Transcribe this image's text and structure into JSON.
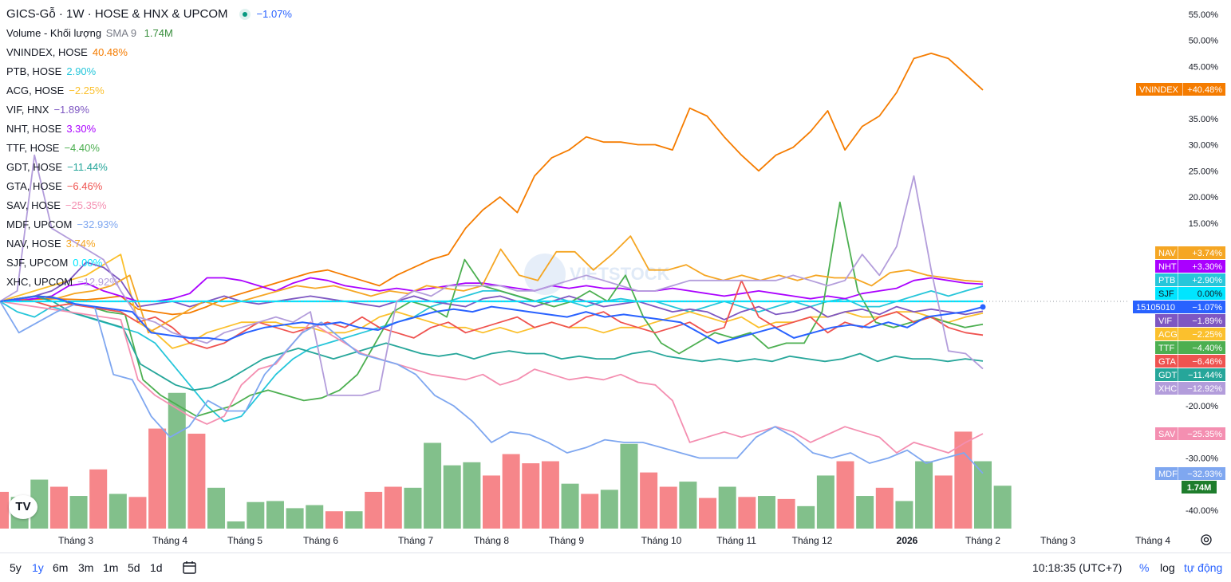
{
  "legend": {
    "title": "GICS-Gỗ · 1W · HOSE & HNX & UPCOM",
    "title_change": "−1.07%",
    "title_color": "#2962ff",
    "volume_label": "Volume - Khối lượng",
    "volume_sma": "SMA 9",
    "volume_value": "1.74M",
    "volume_color": "#388e3c"
  },
  "time_axis": [
    "Tháng 3",
    "Tháng 4",
    "Tháng 5",
    "Tháng 6",
    "Tháng 7",
    "Tháng 8",
    "Tháng 9",
    "Tháng 10",
    "Tháng 11",
    "Tháng 12",
    "2026",
    "Tháng 2",
    "Tháng 3",
    "Tháng 4"
  ],
  "bottom_bar": {
    "ranges": [
      "5y",
      "1y",
      "6m",
      "3m",
      "1m",
      "5d",
      "1d"
    ],
    "active_range": "1y",
    "calendar_icon": "calendar-range-icon",
    "time": "10:18:35 (UTC+7)",
    "pct": "%",
    "log": "log",
    "auto": "tự động"
  },
  "watermark": "VIETSTOCK",
  "tv_logo": "TV",
  "chart_data": {
    "type": "line",
    "title": "GICS-Gỗ · 1W · HOSE & HNX & UPCOM",
    "y_axis": {
      "unit": "%",
      "range": [
        -43,
        56
      ],
      "ticks": [
        55,
        50,
        45,
        40,
        35,
        30,
        25,
        20,
        15,
        10,
        -20,
        -30,
        -40
      ],
      "tick_labels": [
        "55.00%",
        "50.00%",
        "45.00%",
        "40.00%",
        "35.00%",
        "30.00%",
        "25.00%",
        "20.00%",
        "15.00%",
        "10.00%",
        "-20.00%",
        "-30.00%",
        "-40.00%"
      ]
    },
    "x_axis": {
      "type": "time",
      "weeks": 53
    },
    "main_series": {
      "label": "15105010",
      "value": "−1.07%",
      "color": "#2962ff"
    },
    "series": [
      {
        "symbol": "VNINDEX",
        "exchange": "HOSE",
        "value": "40.48%",
        "tag": "+40.48%",
        "color": "#f57c00",
        "values": [
          0,
          0.3,
          0.4,
          0.5,
          0.4,
          0.3,
          0.6,
          1.0,
          -1.5,
          -2.0,
          -2.5,
          -2.2,
          -1.0,
          0.5,
          1.5,
          2.5,
          3.5,
          4.5,
          5.5,
          6.0,
          5.0,
          4.0,
          3.0,
          5.0,
          6.5,
          8.0,
          9.0,
          14.0,
          17.5,
          20.0,
          17.0,
          24.0,
          27.5,
          29.0,
          31.5,
          30.5,
          30.5,
          30.0,
          30.0,
          29.0,
          37.0,
          35.5,
          31.5,
          28.0,
          25.0,
          28.0,
          29.5,
          32.5,
          36.5,
          29.0,
          33.5,
          35.5,
          40.0,
          46.5,
          47.5,
          46.5,
          43.5,
          40.48
        ]
      },
      {
        "symbol": "PTB",
        "exchange": "HOSE",
        "value": "2.90%",
        "tag": "+2.90%",
        "color": "#26c6da",
        "values": [
          0,
          -2,
          -3,
          -1,
          -2,
          -3,
          -4,
          -5,
          -6,
          -8,
          -12,
          -16,
          -20,
          -23,
          -22,
          -18,
          -14,
          -11,
          -9,
          -8,
          -7,
          -6,
          -5,
          -4,
          -3,
          -1,
          0,
          1,
          2,
          2,
          1,
          0,
          1,
          0,
          -1,
          0,
          0.5,
          0,
          0,
          -1,
          -2,
          -1,
          0,
          -1,
          -2,
          -1,
          0,
          -1,
          0,
          0.5,
          -1,
          -1,
          0,
          1,
          2,
          1,
          2,
          2.9
        ]
      },
      {
        "symbol": "ACG",
        "exchange": "HOSE",
        "value": "−2.25%",
        "tag": "−2.25%",
        "color": "#fbc02d",
        "values": [
          0,
          1,
          2,
          3,
          4,
          5,
          7,
          9,
          -4,
          -6,
          -9,
          -8,
          -6,
          -5,
          -4,
          -4,
          -4,
          -5,
          -5,
          -6,
          -6,
          -5,
          -3,
          -2,
          -3,
          -4,
          -5,
          -5,
          -6,
          -5,
          -6,
          -5,
          -4,
          -5,
          -5,
          -6,
          -5,
          -5,
          -4,
          -3,
          -2,
          -3,
          -4,
          -3,
          -5,
          -4,
          -4,
          -3,
          -3,
          -2,
          -3,
          -3,
          -2,
          -2,
          -3,
          -4,
          -3,
          -2.25
        ]
      },
      {
        "symbol": "VIF",
        "exchange": "HNX",
        "value": "−1.89%",
        "tag": "−1.89%",
        "color": "#7e57c2",
        "values": [
          0,
          0.5,
          1.0,
          2.0,
          4.0,
          7.5,
          6.5,
          4.0,
          -1.0,
          -0.5,
          0,
          -1.0,
          0,
          1.0,
          0,
          -0.5,
          0,
          0.5,
          1.0,
          0.5,
          0,
          -0.5,
          -1.0,
          0,
          1.0,
          0,
          -0.5,
          -1.0,
          0.5,
          1.0,
          0,
          -1.0,
          0,
          1.0,
          0,
          -1.0,
          -0.5,
          0,
          -1.0,
          -2.0,
          -1.5,
          -2.0,
          -3.5,
          -2.0,
          -1.0,
          -2.5,
          -2.0,
          -1.0,
          -3.0,
          -2.0,
          -1.5,
          -2.5,
          -1.0,
          -2.0,
          -1.5,
          -2.0,
          -2.5,
          -1.89
        ]
      },
      {
        "symbol": "NHT",
        "exchange": "HOSE",
        "value": "3.30%",
        "tag": "+3.30%",
        "color": "#aa00ff",
        "values": [
          0,
          0.2,
          0.5,
          1.0,
          3.0,
          3.5,
          2.0,
          1.0,
          0,
          0,
          0.5,
          1.5,
          4.5,
          4.5,
          4.0,
          3.0,
          2.0,
          3.5,
          4.5,
          4.0,
          3.0,
          2.5,
          2.0,
          2.5,
          2.0,
          2.5,
          3.0,
          3.5,
          3.5,
          3.0,
          2.5,
          2.0,
          3.0,
          2.5,
          3.0,
          2.5,
          2.5,
          2.0,
          2.0,
          2.5,
          2.0,
          1.5,
          1.0,
          1.5,
          2.0,
          1.5,
          1.0,
          0.5,
          1.0,
          0.5,
          1.5,
          2.0,
          2.5,
          4.0,
          4.5,
          4.0,
          3.5,
          3.3
        ]
      },
      {
        "symbol": "TTF",
        "exchange": "HOSE",
        "value": "−4.40%",
        "tag": "−4.40%",
        "color": "#4caf50",
        "values": [
          0,
          0.5,
          1.0,
          0.8,
          -0.5,
          -1.0,
          -2.0,
          -2.5,
          -15.0,
          -18.0,
          -20.0,
          -22.0,
          -21.0,
          -20.0,
          -18.0,
          -17.0,
          -18.0,
          -19.0,
          -18.5,
          -17.0,
          -14.0,
          -8.0,
          -2.0,
          0,
          -1.0,
          -3.0,
          8.0,
          3.0,
          2.0,
          1.0,
          0,
          -1.0,
          0,
          2.0,
          0,
          5.0,
          -3.0,
          -8.0,
          -10.0,
          -8.0,
          -6.0,
          -7.0,
          -6.0,
          -9.0,
          -8.0,
          -8.0,
          -2.0,
          19.0,
          2.0,
          -4.0,
          -5.0,
          -4.0,
          -3.0,
          -4.0,
          -5.0,
          -4.4
        ]
      },
      {
        "symbol": "GDT",
        "exchange": "HOSE",
        "value": "−11.44%",
        "tag": "−11.44%",
        "color": "#26a69a",
        "values": [
          0,
          0.5,
          1.0,
          0,
          -2.0,
          -3.0,
          -4.0,
          -5.0,
          -12.0,
          -14.0,
          -16.0,
          -17.0,
          -16.5,
          -15.0,
          -13.0,
          -11.0,
          -10.0,
          -9.0,
          -10.0,
          -11.0,
          -10.0,
          -9.0,
          -8.0,
          -9.0,
          -10.0,
          -10.5,
          -10.0,
          -11.0,
          -10.0,
          -9.5,
          -10.0,
          -10.0,
          -11.0,
          -10.5,
          -11.0,
          -11.0,
          -10.0,
          -9.5,
          -10.5,
          -11.0,
          -11.5,
          -11.0,
          -11.5,
          -11.0,
          -11.5,
          -10.5,
          -11.0,
          -11.5,
          -11.0,
          -10.0,
          -11.5,
          -10.5,
          -11.0,
          -11.0,
          -11.5,
          -11.0,
          -11.44
        ]
      },
      {
        "symbol": "GTA",
        "exchange": "HOSE",
        "value": "−6.46%",
        "tag": "−6.46%",
        "color": "#ef5350",
        "values": [
          0,
          0.5,
          0,
          -1.0,
          -0.5,
          -1.0,
          -1.5,
          -2.0,
          -4.0,
          -3.0,
          -5.0,
          -8.0,
          -9.0,
          -8.0,
          -6.0,
          -4.0,
          -5.0,
          -6.0,
          -5.0,
          -4.0,
          -5.0,
          -3.0,
          -5.0,
          -6.0,
          -7.0,
          -5.0,
          -4.0,
          -6.0,
          -5.0,
          -4.0,
          -3.0,
          -5.0,
          -4.0,
          -5.0,
          -3.0,
          -2.0,
          -4.0,
          -5.0,
          -6.0,
          -5.0,
          -4.0,
          -6.0,
          -5.0,
          4.0,
          -3.0,
          -5.0,
          -4.0,
          -3.0,
          -6.0,
          -4.0,
          -5.0,
          -3.0,
          -2.0,
          -4.0,
          -3.0,
          -5.0,
          -6.0,
          -6.46
        ]
      },
      {
        "symbol": "SAV",
        "exchange": "HOSE",
        "value": "−25.35%",
        "tag": "−25.35%",
        "color": "#f48fb1",
        "values": [
          0,
          -0.5,
          -1.0,
          -1.5,
          -2.0,
          -2.5,
          -3.0,
          -3.5,
          -15.0,
          -18.0,
          -20.0,
          -22.0,
          -23.5,
          -22.0,
          -16.0,
          -13.0,
          -12.0,
          -8.0,
          -4.0,
          -6.0,
          -8.0,
          -10.0,
          -11.0,
          -12.0,
          -13.0,
          -14.0,
          -14.5,
          -15.0,
          -14.0,
          -16.0,
          -15.0,
          -13.0,
          -14.0,
          -15.0,
          -14.5,
          -15.0,
          -14.0,
          -15.5,
          -16.0,
          -19.0,
          -27.0,
          -26.0,
          -25.0,
          -26.0,
          -25.0,
          -24.0,
          -25.0,
          -27.0,
          -25.5,
          -24.0,
          -25.0,
          -26.0,
          -29.0,
          -27.0,
          -28.0,
          -29.0,
          -27.0,
          -25.35
        ]
      },
      {
        "symbol": "MDF",
        "exchange": "UPCOM",
        "value": "−32.93%",
        "tag": "−32.93%",
        "color": "#7fa7f0",
        "values": [
          0,
          -6.0,
          -4.0,
          -2.0,
          -0.5,
          -1.0,
          -14.0,
          -15.0,
          -22.0,
          -26.0,
          -24.0,
          -19.0,
          -21.0,
          -21.0,
          -14.0,
          -10.0,
          -6.0,
          -4.0,
          -7.0,
          -10.0,
          -11.0,
          -12.0,
          -14.0,
          -18.0,
          -20.0,
          -23.0,
          -27.0,
          -25.0,
          -25.5,
          -27.0,
          -29.0,
          -28.0,
          -26.5,
          -27.0,
          -27.0,
          -28.0,
          -29.0,
          -30.0,
          -30.0,
          -30.0,
          -26.0,
          -24.0,
          -26.0,
          -29.0,
          -30.0,
          -29.0,
          -31.0,
          -30.0,
          -28.5,
          -31.0,
          -30.0,
          -29.0,
          -32.93
        ]
      },
      {
        "symbol": "NAV",
        "exchange": "HOSE",
        "value": "3.74%",
        "tag": "+3.74%",
        "color": "#f5a623",
        "values": [
          0,
          0.5,
          1.0,
          0.5,
          1.5,
          2.0,
          3.0,
          5.0,
          -6.0,
          -4.0,
          -2.0,
          0,
          -1.0,
          0,
          1.0,
          2.0,
          3.0,
          2.5,
          3.0,
          2.0,
          1.0,
          2.0,
          1.5,
          3.0,
          2.5,
          2.0,
          3.0,
          10.0,
          5.0,
          4.0,
          9.5,
          9.5,
          6.0,
          9.0,
          12.5,
          6.0,
          6.0,
          7.0,
          5.0,
          4.0,
          5.0,
          4.0,
          5.0,
          4.0,
          5.0,
          4.5,
          4.5,
          3.0,
          5.5,
          6.0,
          5.0,
          4.5,
          4.0,
          3.74
        ]
      },
      {
        "symbol": "SJF",
        "exchange": "UPCOM",
        "value": "0.00%",
        "tag": "0.00%",
        "color": "#00e5ff",
        "values": [
          0,
          0,
          0,
          0,
          0,
          0,
          0,
          0,
          0,
          0,
          0,
          0,
          0,
          0,
          0,
          0,
          0,
          0,
          0,
          0,
          0,
          0,
          0,
          0,
          0,
          0,
          0,
          0,
          0,
          0,
          0,
          0,
          0,
          0,
          0,
          0,
          0,
          0,
          0,
          0,
          0,
          0,
          0,
          0,
          0,
          0,
          0,
          0,
          0,
          0,
          0,
          0,
          0,
          0,
          0,
          0,
          0,
          0
        ]
      },
      {
        "symbol": "XHC",
        "exchange": "UPCOM",
        "value": "−12.92%",
        "tag": "−12.92%",
        "color": "#b39ddb",
        "values": [
          0,
          2.0,
          28.0,
          14.0,
          12.0,
          10.0,
          8.0,
          2.0,
          -3.0,
          -4.0,
          -6.0,
          -7.0,
          -8.0,
          -6.0,
          -5.0,
          -4.0,
          -3.0,
          -4.0,
          -2.0,
          -18.0,
          -18.0,
          -18.0,
          -17.0,
          0,
          2.0,
          1.0,
          3.0,
          3.0,
          3.0,
          3.0,
          2.0,
          2.0,
          3.0,
          4.0,
          5.0,
          4.0,
          3.0,
          2.0,
          2.0,
          3.0,
          4.0,
          4.0,
          4.0,
          4.0,
          4.0,
          4.0,
          5.0,
          4.0,
          3.0,
          4.0,
          9.0,
          5.0,
          10.5,
          24.0,
          6.0,
          -9.5,
          -10.0,
          -12.92
        ]
      }
    ],
    "volume": {
      "label": "1.74M",
      "last_color": "#1e7d2c",
      "bars": [
        {
          "v": 0.36,
          "up": false
        },
        {
          "v": 0.31,
          "up": true
        },
        {
          "v": 0.48,
          "up": true
        },
        {
          "v": 0.41,
          "up": false
        },
        {
          "v": 0.32,
          "up": true
        },
        {
          "v": 0.58,
          "up": false
        },
        {
          "v": 0.34,
          "up": true
        },
        {
          "v": 0.31,
          "up": false
        },
        {
          "v": 0.98,
          "up": false
        },
        {
          "v": 1.33,
          "up": true
        },
        {
          "v": 0.93,
          "up": false
        },
        {
          "v": 0.4,
          "up": true
        },
        {
          "v": 0.07,
          "up": true
        },
        {
          "v": 0.26,
          "up": true
        },
        {
          "v": 0.27,
          "up": true
        },
        {
          "v": 0.2,
          "up": true
        },
        {
          "v": 0.23,
          "up": true
        },
        {
          "v": 0.17,
          "up": false
        },
        {
          "v": 0.17,
          "up": true
        },
        {
          "v": 0.36,
          "up": false
        },
        {
          "v": 0.41,
          "up": false
        },
        {
          "v": 0.4,
          "up": true
        },
        {
          "v": 0.84,
          "up": true
        },
        {
          "v": 0.62,
          "up": true
        },
        {
          "v": 0.65,
          "up": true
        },
        {
          "v": 0.52,
          "up": false
        },
        {
          "v": 0.73,
          "up": false
        },
        {
          "v": 0.64,
          "up": false
        },
        {
          "v": 0.66,
          "up": false
        },
        {
          "v": 0.44,
          "up": true
        },
        {
          "v": 0.34,
          "up": false
        },
        {
          "v": 0.38,
          "up": true
        },
        {
          "v": 0.83,
          "up": true
        },
        {
          "v": 0.55,
          "up": false
        },
        {
          "v": 0.41,
          "up": false
        },
        {
          "v": 0.46,
          "up": true
        },
        {
          "v": 0.3,
          "up": false
        },
        {
          "v": 0.41,
          "up": true
        },
        {
          "v": 0.31,
          "up": false
        },
        {
          "v": 0.32,
          "up": true
        },
        {
          "v": 0.29,
          "up": false
        },
        {
          "v": 0.22,
          "up": true
        },
        {
          "v": 0.52,
          "up": true
        },
        {
          "v": 0.66,
          "up": false
        },
        {
          "v": 0.32,
          "up": true
        },
        {
          "v": 0.4,
          "up": false
        },
        {
          "v": 0.27,
          "up": true
        },
        {
          "v": 0.66,
          "up": true
        },
        {
          "v": 0.52,
          "up": false
        },
        {
          "v": 0.95,
          "up": false
        },
        {
          "v": 0.66,
          "up": true
        },
        {
          "v": 0.42,
          "up": true
        }
      ]
    }
  }
}
